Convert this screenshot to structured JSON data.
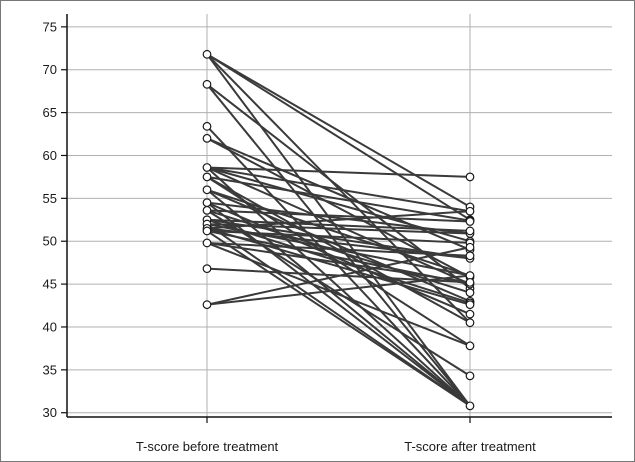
{
  "chart_data": {
    "type": "line",
    "title": "",
    "xlabel": "",
    "ylabel": "",
    "categories": [
      "T-score before treatment",
      "T-score after treatment"
    ],
    "ylim": [
      29.5,
      76.5
    ],
    "y_ticks": [
      30,
      35,
      40,
      45,
      50,
      55,
      60,
      65,
      70,
      75
    ],
    "grid": {
      "horizontal": true,
      "vertical": true
    },
    "legend": "none",
    "line_color": "#3a3a3a",
    "marker_stroke": "#1a1a1a",
    "marker_fill": "#ffffff",
    "grid_color": "#b0b0b0",
    "pairs": [
      [
        71.8,
        30.8
      ],
      [
        71.8,
        40.5
      ],
      [
        71.8,
        54.0
      ],
      [
        71.8,
        52.5
      ],
      [
        68.3,
        30.8
      ],
      [
        68.3,
        44.5
      ],
      [
        63.4,
        30.8
      ],
      [
        62.0,
        49.0
      ],
      [
        62.0,
        45.8
      ],
      [
        58.6,
        57.5
      ],
      [
        58.6,
        53.5
      ],
      [
        58.6,
        50.0
      ],
      [
        58.6,
        45.0
      ],
      [
        58.6,
        30.8
      ],
      [
        57.5,
        52.4
      ],
      [
        57.5,
        40.5
      ],
      [
        57.5,
        37.8
      ],
      [
        56.0,
        46.0
      ],
      [
        56.0,
        43.0
      ],
      [
        56.0,
        30.8
      ],
      [
        54.5,
        50.9
      ],
      [
        54.5,
        41.5
      ],
      [
        54.5,
        30.8
      ],
      [
        53.6,
        52.3
      ],
      [
        53.6,
        44.0
      ],
      [
        53.6,
        34.3
      ],
      [
        52.5,
        51.2
      ],
      [
        52.5,
        48.0
      ],
      [
        52.5,
        42.8
      ],
      [
        52.0,
        50.9
      ],
      [
        52.0,
        46.0
      ],
      [
        52.0,
        30.8
      ],
      [
        51.5,
        53.5
      ],
      [
        51.5,
        48.0
      ],
      [
        51.5,
        42.6
      ],
      [
        51.2,
        49.8
      ],
      [
        51.2,
        45.0
      ],
      [
        51.2,
        30.8
      ],
      [
        49.8,
        48.3
      ],
      [
        49.8,
        45.2
      ],
      [
        49.8,
        37.8
      ],
      [
        46.8,
        45.2
      ],
      [
        42.6,
        49.3
      ],
      [
        42.6,
        46.0
      ]
    ]
  }
}
